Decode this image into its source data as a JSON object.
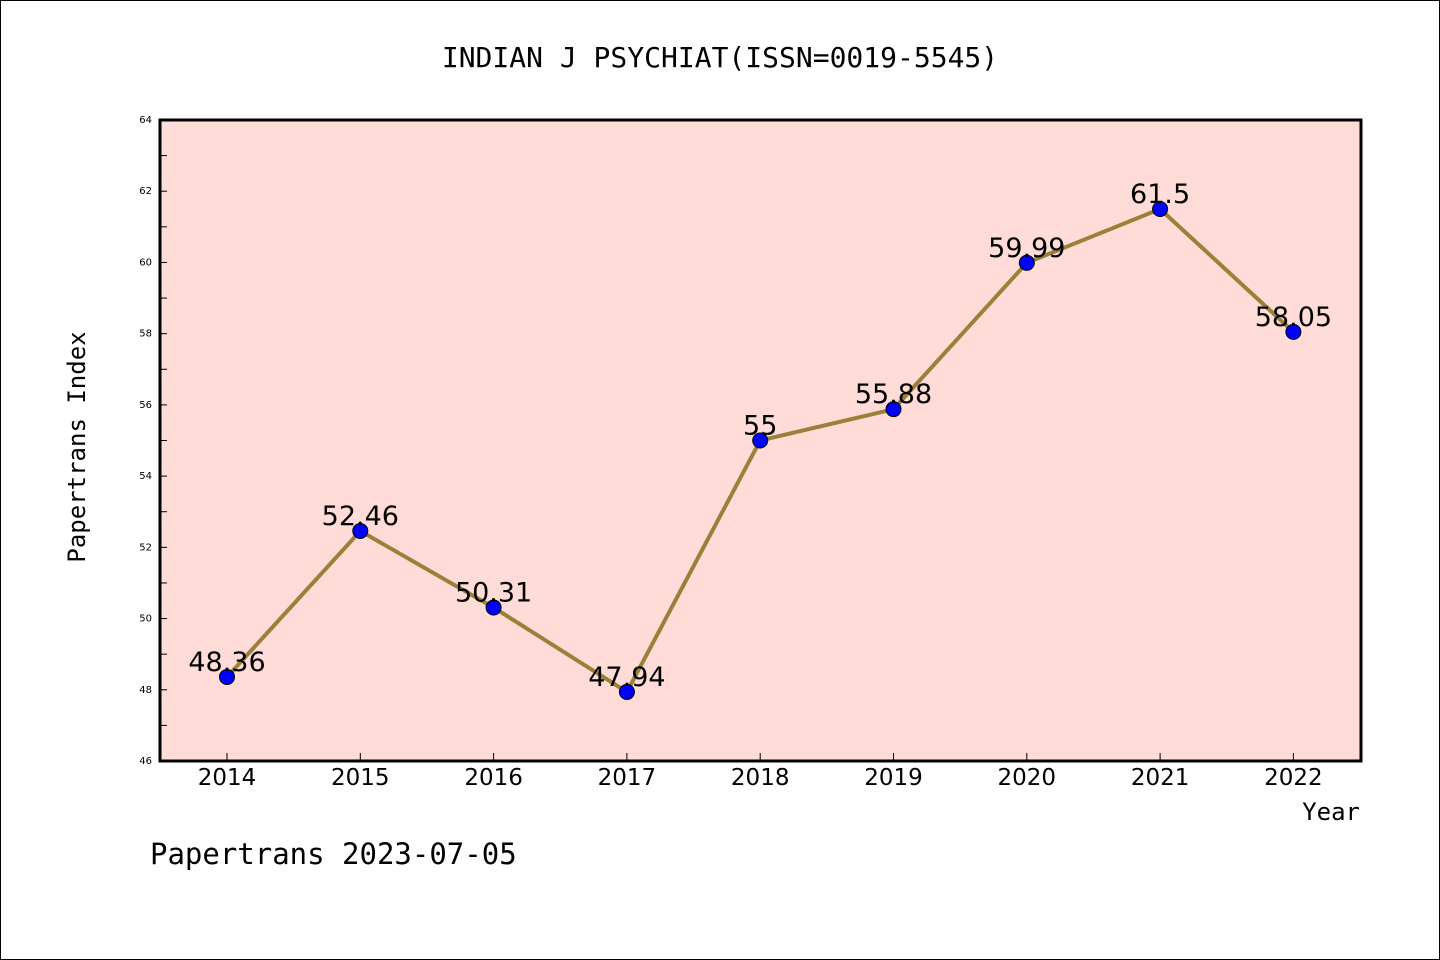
{
  "chart_data": {
    "type": "line",
    "title": "INDIAN J PSYCHIAT(ISSN=0019-5545)",
    "xlabel": "Year",
    "ylabel": "Papertrans Index",
    "footer": "Papertrans 2023-07-05",
    "categories": [
      "2014",
      "2015",
      "2016",
      "2017",
      "2018",
      "2019",
      "2020",
      "2021",
      "2022"
    ],
    "values": [
      48.36,
      52.46,
      50.31,
      47.94,
      55,
      55.88,
      59.99,
      61.5,
      58.05
    ],
    "value_labels": [
      "48.36",
      "52.46",
      "50.31",
      "47.94",
      "55",
      "55.88",
      "59.99",
      "61.5",
      "58.05"
    ],
    "ylim": [
      46,
      64
    ],
    "yticks": [
      "46",
      "48",
      "50",
      "52",
      "54",
      "56",
      "58",
      "60",
      "62",
      "64"
    ],
    "legend": "none",
    "grid": false,
    "colors": {
      "plot_background": "#ffdcd8",
      "line": "#9a8038",
      "marker": "#0000ff"
    }
  }
}
